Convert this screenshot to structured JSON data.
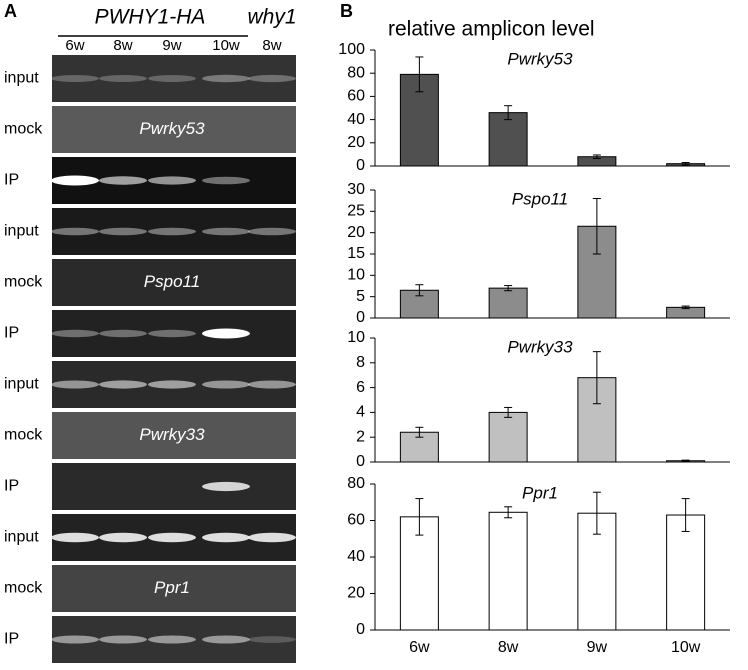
{
  "panel_a": {
    "label": "A",
    "header": "PWHY1-HA",
    "header2": "why1",
    "lanes": [
      "6w",
      "8w",
      "9w",
      "10w",
      "8w"
    ],
    "rows": [
      "input",
      "mock",
      "IP",
      "input",
      "mock",
      "IP",
      "input",
      "mock",
      "IP",
      "input",
      "mock",
      "IP"
    ],
    "genes": [
      "Pwrky53",
      "Pspo11",
      "Pwrky33",
      "Ppr1"
    ]
  },
  "panel_b": {
    "label": "B",
    "ylabel": "relative amplicon level"
  },
  "chart_data": [
    {
      "type": "bar",
      "title": "Pwrky53",
      "color": "#505050",
      "values": [
        79,
        46,
        8,
        2
      ],
      "errors": [
        15,
        6,
        1.5,
        1
      ],
      "ylim": [
        0,
        100
      ],
      "yticks": [
        0,
        20,
        40,
        60,
        80,
        100
      ]
    },
    {
      "type": "bar",
      "title": "Pspo11",
      "color": "#8c8c8c",
      "values": [
        6.5,
        7,
        21.5,
        2.5
      ],
      "errors": [
        1.3,
        0.6,
        6.5,
        0.3
      ],
      "ylim": [
        0,
        30
      ],
      "yticks": [
        0,
        5,
        10,
        15,
        20,
        25,
        30
      ]
    },
    {
      "type": "bar",
      "title": "Pwrky33",
      "color": "#c0c0c0",
      "values": [
        2.4,
        4,
        6.8,
        0.1
      ],
      "errors": [
        0.4,
        0.4,
        2.1,
        0.05
      ],
      "ylim": [
        0,
        10
      ],
      "yticks": [
        0,
        2,
        4,
        6,
        8,
        10
      ]
    },
    {
      "type": "bar",
      "title": "Ppr1",
      "color": "#ffffff",
      "categories": [
        "6w",
        "8w",
        "9w",
        "10w"
      ],
      "values": [
        62,
        64.5,
        64,
        63
      ],
      "errors": [
        10,
        3,
        11.5,
        9
      ],
      "ylim": [
        0,
        80
      ],
      "yticks": [
        0,
        20,
        40,
        60,
        80
      ]
    }
  ]
}
